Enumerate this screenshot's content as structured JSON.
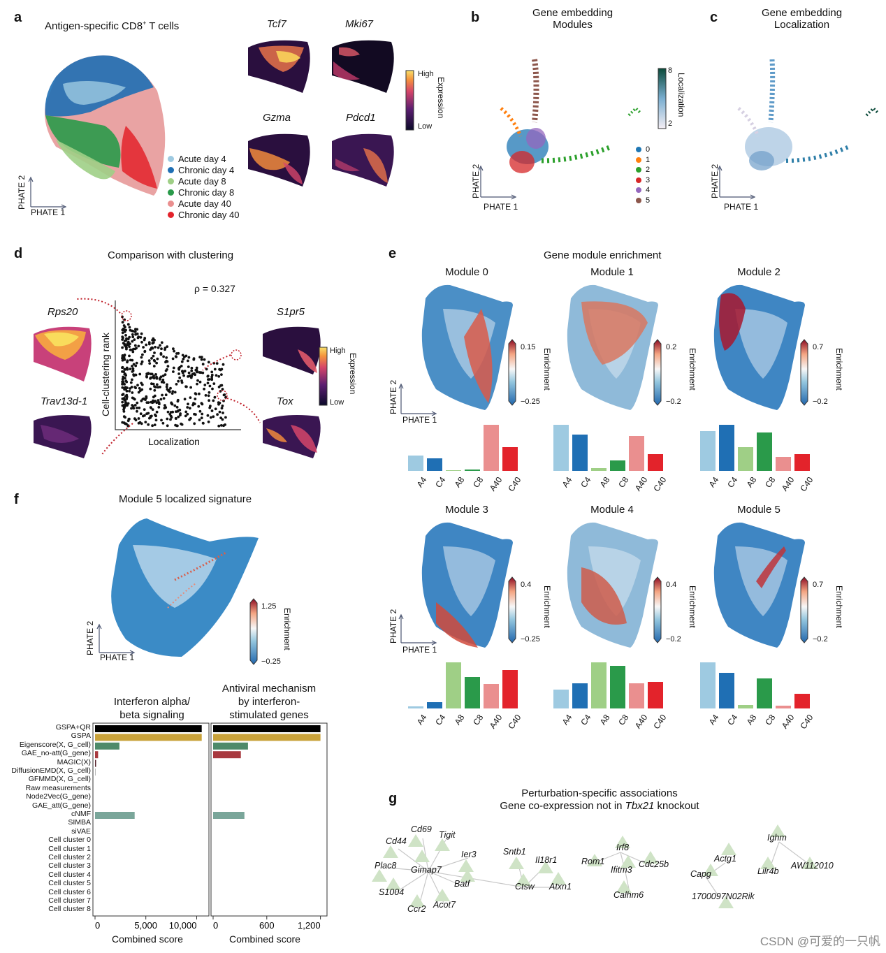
{
  "panels": {
    "a": {
      "letter": "a",
      "title": "Antigen-specific CD8",
      "title_sup": "+",
      "title_tail": " T cells",
      "axis_x": "PHATE 1",
      "axis_y": "PHATE 2",
      "legend": [
        {
          "label": "Acute day 4",
          "color": "#9ecae1"
        },
        {
          "label": "Chronic day 4",
          "color": "#1f6fb4"
        },
        {
          "label": "Acute day 8",
          "color": "#9fcf86"
        },
        {
          "label": "Chronic day 8",
          "color": "#2a9a4a"
        },
        {
          "label": "Acute day 40",
          "color": "#ea8f8f"
        },
        {
          "label": "Chronic day 40",
          "color": "#e3232b"
        }
      ],
      "genes": [
        "Tcf7",
        "Mki67",
        "Gzma",
        "Pdcd1"
      ],
      "cbar_high": "High",
      "cbar_low": "Low",
      "cbar_title": "Expression"
    },
    "b": {
      "letter": "b",
      "title_line1": "Gene embedding",
      "title_line2": "Modules",
      "axis_x": "PHATE 1",
      "axis_y": "PHATE 2",
      "modules": [
        {
          "label": "0",
          "color": "#1f77b4"
        },
        {
          "label": "1",
          "color": "#ff7f0e"
        },
        {
          "label": "2",
          "color": "#2ca02c"
        },
        {
          "label": "3",
          "color": "#d62728"
        },
        {
          "label": "4",
          "color": "#9467bd"
        },
        {
          "label": "5",
          "color": "#8c564b"
        }
      ]
    },
    "c": {
      "letter": "c",
      "title_line1": "Gene embedding",
      "title_line2": "Localization",
      "axis_x": "PHATE 1",
      "axis_y": "PHATE 2",
      "cbar_title": "Localization",
      "cbar_max": "8",
      "cbar_min": "2"
    },
    "d": {
      "letter": "d",
      "title": "Comparison with clustering",
      "rho": "ρ = 0.327",
      "ylabel": "Cell-clustering rank",
      "xlabel": "Localization",
      "genes_left": [
        "Rps20",
        "Trav13d-1"
      ],
      "genes_right": [
        "S1pr5",
        "Tox"
      ],
      "cbar_high": "High",
      "cbar_low": "Low",
      "cbar_title": "Expression"
    },
    "e": {
      "letter": "e",
      "title": "Gene module enrichment",
      "axis_x": "PHATE 1",
      "axis_y": "PHATE 2",
      "cbar_title": "Enrichment",
      "categories": [
        "A4",
        "C4",
        "A8",
        "C8",
        "A40",
        "C40"
      ],
      "bar_colors": [
        "#9ecae1",
        "#1f6fb4",
        "#9fcf86",
        "#2a9a4a",
        "#ea8f8f",
        "#e3232b"
      ],
      "modules": [
        {
          "title": "Module 0",
          "cmax": "0.15",
          "cmin": "−0.25"
        },
        {
          "title": "Module 1",
          "cmax": "0.2",
          "cmin": "−0.2"
        },
        {
          "title": "Module 2",
          "cmax": "0.7",
          "cmin": "−0.2"
        },
        {
          "title": "Module 3",
          "cmax": "0.4",
          "cmin": "−0.25"
        },
        {
          "title": "Module 4",
          "cmax": "0.4",
          "cmin": "−0.2"
        },
        {
          "title": "Module 5",
          "cmax": "0.7",
          "cmin": "−0.2"
        }
      ]
    },
    "f": {
      "letter": "f",
      "title": "Module 5 localized signature",
      "axis_x": "PHATE 1",
      "axis_y": "PHATE 2",
      "cbar_title": "Enrichment",
      "cbar_max": "1.25",
      "cbar_min": "−0.25",
      "chart1_title_l1": "Interferon alpha/",
      "chart1_title_l2": "beta signaling",
      "chart2_title_l1": "Antiviral mechanism",
      "chart2_title_l2": "by interferon-",
      "chart2_title_l3": "stimulated genes",
      "xlabel": "Combined score",
      "chart1_ticks": [
        "0",
        "5,000",
        "10,000"
      ],
      "chart2_ticks": [
        "0",
        "600",
        "1,200"
      ],
      "methods": [
        "GSPA+QR",
        "GSPA",
        "Eigenscore(X, G_cell)",
        "GAE_no-att(G_gene)",
        "MAGIC(X)",
        "DiffusionEMD(X, G_cell)",
        "GFMMD(X, G_cell)",
        "Raw measurements",
        "Node2Vec(G_gene)",
        "GAE_att(G_gene)",
        "cNMF",
        "SIMBA",
        "siVAE",
        "Cell cluster 0",
        "Cell cluster 1",
        "Cell cluster 2",
        "Cell cluster 3",
        "Cell cluster 4",
        "Cell cluster 5",
        "Cell cluster 6",
        "Cell cluster 7",
        "Cell cluster 8"
      ]
    },
    "g": {
      "letter": "g",
      "title_line1": "Perturbation-specific associations",
      "title_line2_pre": "Gene co-expression not in ",
      "title_line2_ital": "Tbx21",
      "title_line2_post": " knockout",
      "nodes": [
        "Cd69",
        "Tigit",
        "Cd44",
        "Ier3",
        "Plac8",
        "Gimap7",
        "Batf",
        "S1004",
        "Ccr2",
        "Acot7",
        "Sntb1",
        "Il18r1",
        "Ctsw",
        "Atxn1",
        "Irf8",
        "Rom1",
        "Ifitm3",
        "Cdc25b",
        "Calhm6",
        "Actg1",
        "Capg",
        "1700097N02Rik",
        "Ighm",
        "Lilr4b",
        "AW112010"
      ]
    }
  },
  "chart_data": [
    {
      "type": "bar",
      "title": "Module 0",
      "categories": [
        "A4",
        "C4",
        "A8",
        "C8",
        "A40",
        "C40"
      ],
      "values": [
        0.33,
        0.28,
        0.01,
        0.03,
        1.0,
        0.52
      ],
      "ylabel": ""
    },
    {
      "type": "bar",
      "title": "Module 1",
      "categories": [
        "A4",
        "C4",
        "A8",
        "C8",
        "A40",
        "C40"
      ],
      "values": [
        1.0,
        0.79,
        0.06,
        0.23,
        0.76,
        0.36
      ]
    },
    {
      "type": "bar",
      "title": "Module 2",
      "categories": [
        "A4",
        "C4",
        "A8",
        "C8",
        "A40",
        "C40"
      ],
      "values": [
        0.87,
        1.0,
        0.52,
        0.83,
        0.31,
        0.37
      ]
    },
    {
      "type": "bar",
      "title": "Module 3",
      "categories": [
        "A4",
        "C4",
        "A8",
        "C8",
        "A40",
        "C40"
      ],
      "values": [
        0.05,
        0.13,
        1.0,
        0.68,
        0.53,
        0.84
      ]
    },
    {
      "type": "bar",
      "title": "Module 4",
      "categories": [
        "A4",
        "C4",
        "A8",
        "C8",
        "A40",
        "C40"
      ],
      "values": [
        0.41,
        0.55,
        1.0,
        0.93,
        0.54,
        0.58
      ]
    },
    {
      "type": "bar",
      "title": "Module 5",
      "categories": [
        "A4",
        "C4",
        "A8",
        "C8",
        "A40",
        "C40"
      ],
      "values": [
        1.0,
        0.77,
        0.07,
        0.65,
        0.06,
        0.32
      ]
    },
    {
      "type": "bar",
      "orientation": "horizontal",
      "title": "Interferon alpha/beta signaling",
      "xlabel": "Combined score",
      "xlim": [
        0,
        11000
      ],
      "categories": [
        "GSPA+QR",
        "GSPA",
        "Eigenscore",
        "GAE_no-att",
        "MAGIC",
        "DiffusionEMD",
        "GFMMD",
        "Raw measurements",
        "Node2Vec",
        "GAE_att",
        "cNMF",
        "SIMBA",
        "siVAE",
        "Cell cluster 0",
        "Cell cluster 1",
        "Cell cluster 2",
        "Cell cluster 3",
        "Cell cluster 4",
        "Cell cluster 5",
        "Cell cluster 6",
        "Cell cluster 7",
        "Cell cluster 8"
      ],
      "values": [
        10500,
        10500,
        2400,
        300,
        100,
        50,
        0,
        0,
        0,
        0,
        3900,
        0,
        0,
        0,
        0,
        0,
        0,
        0,
        0,
        0,
        0,
        0
      ],
      "colors": [
        "#000000",
        "#c9a23a",
        "#4e8a6a",
        "#a8393f",
        "#5a2630",
        "#999999",
        "#999999",
        "#999999",
        "#999999",
        "#999999",
        "#7aa69a",
        "#999999",
        "#999999",
        "#999999",
        "#999999",
        "#999999",
        "#999999",
        "#999999",
        "#999999",
        "#999999",
        "#999999",
        "#999999"
      ]
    },
    {
      "type": "bar",
      "orientation": "horizontal",
      "title": "Antiviral mechanism by interferon-stimulated genes",
      "xlabel": "Combined score",
      "xlim": [
        0,
        1250
      ],
      "categories": [
        "GSPA+QR",
        "GSPA",
        "Eigenscore",
        "GAE_no-att",
        "MAGIC",
        "DiffusionEMD",
        "GFMMD",
        "Raw measurements",
        "Node2Vec",
        "GAE_att",
        "cNMF",
        "SIMBA",
        "siVAE",
        "Cell cluster 0",
        "Cell cluster 1",
        "Cell cluster 2",
        "Cell cluster 3",
        "Cell cluster 4",
        "Cell cluster 5",
        "Cell cluster 6",
        "Cell cluster 7",
        "Cell cluster 8"
      ],
      "values": [
        1200,
        1200,
        390,
        310,
        0,
        0,
        0,
        0,
        0,
        0,
        350,
        0,
        0,
        0,
        0,
        0,
        0,
        0,
        0,
        0,
        0,
        0
      ],
      "colors": [
        "#000000",
        "#c9a23a",
        "#4e8a6a",
        "#a8393f",
        "#5a2630",
        "#999999",
        "#999999",
        "#999999",
        "#999999",
        "#999999",
        "#7aa69a",
        "#999999",
        "#999999",
        "#999999",
        "#999999",
        "#999999",
        "#999999",
        "#999999",
        "#999999",
        "#999999",
        "#999999",
        "#999999"
      ]
    }
  ],
  "watermark": "CSDN @可爱的一只帆"
}
